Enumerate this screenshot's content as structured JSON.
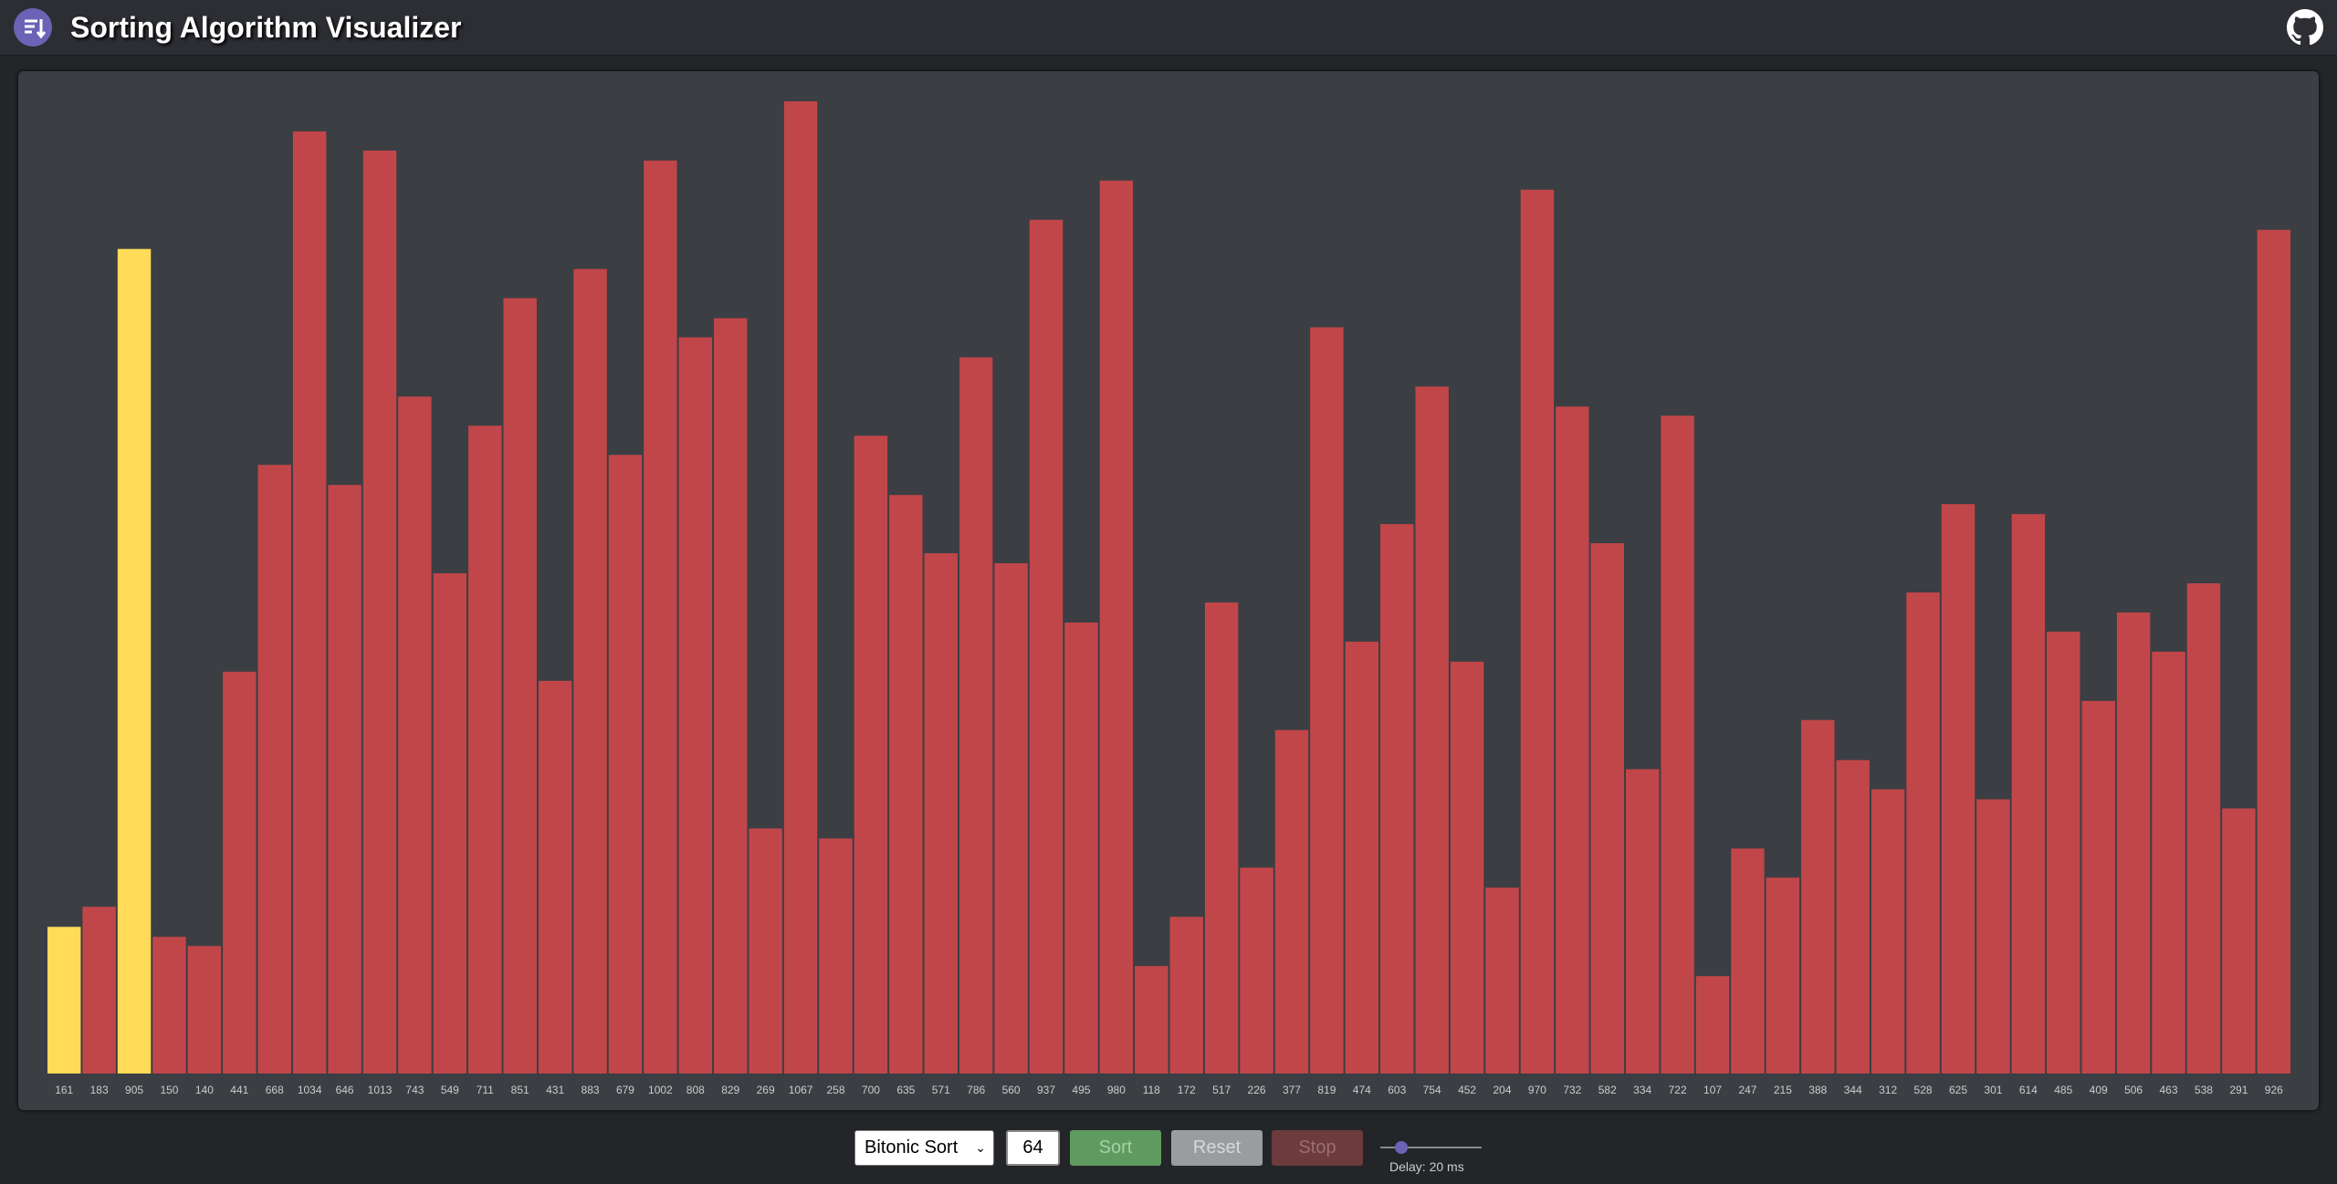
{
  "header": {
    "title": "Sorting Algorithm Visualizer"
  },
  "visualizer": {
    "bar_color": "#c1464a",
    "highlight_color": "#ffdb58",
    "highlighted": [
      0,
      2
    ],
    "values": [
      161,
      183,
      905,
      150,
      140,
      441,
      668,
      1034,
      646,
      1013,
      743,
      549,
      711,
      851,
      431,
      883,
      679,
      1002,
      808,
      829,
      269,
      1067,
      258,
      700,
      635,
      571,
      786,
      560,
      937,
      495,
      980,
      118,
      172,
      517,
      226,
      377,
      819,
      474,
      603,
      754,
      452,
      204,
      970,
      732,
      582,
      334,
      722,
      107,
      247,
      215,
      388,
      344,
      312,
      528,
      625,
      301,
      614,
      485,
      409,
      506,
      463,
      538,
      291,
      926
    ]
  },
  "controls": {
    "algorithm": "Bitonic Sort",
    "size": 64,
    "sort": "Sort",
    "reset": "Reset",
    "stop": "Stop",
    "delay": "Delay: 20 ms"
  }
}
